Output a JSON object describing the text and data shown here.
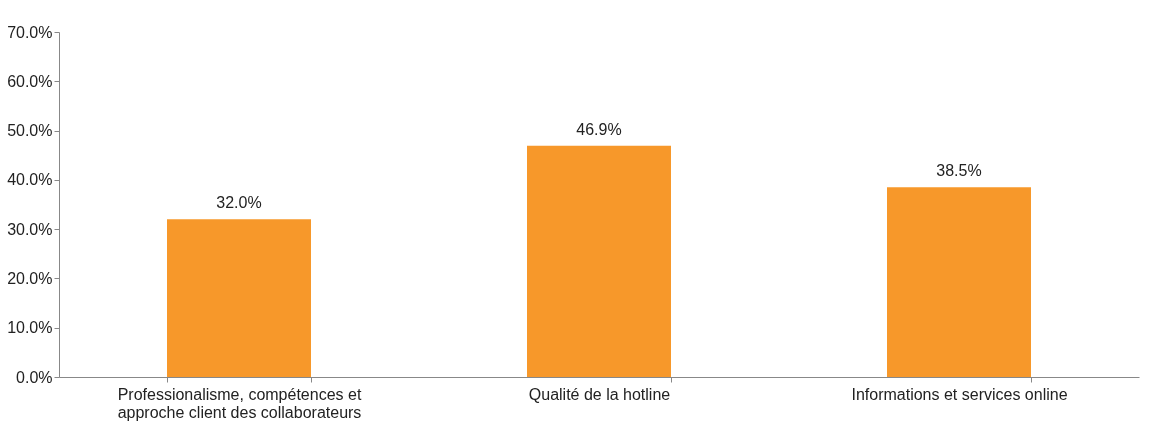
{
  "chart_data": {
    "type": "bar",
    "categories": [
      "Professionalisme, compétences et approche client des collaborateurs",
      "Qualité de la hotline",
      "Informations et services online"
    ],
    "values": [
      32.0,
      46.9,
      38.5
    ],
    "value_labels": [
      "32.0%",
      "46.9%",
      "38.5%"
    ],
    "color": "#f7982a",
    "ylim": [
      0,
      70
    ],
    "yticks": [
      {
        "value": 0,
        "label": "0.0%"
      },
      {
        "value": 10,
        "label": "10.0%"
      },
      {
        "value": 20,
        "label": "20.0%"
      },
      {
        "value": 30,
        "label": "30.0%"
      },
      {
        "value": 40,
        "label": "40.0%"
      },
      {
        "value": 50,
        "label": "50.0%"
      },
      {
        "value": 60,
        "label": "60.0%"
      },
      {
        "value": 70,
        "label": "70.0%"
      }
    ],
    "grid": false
  }
}
